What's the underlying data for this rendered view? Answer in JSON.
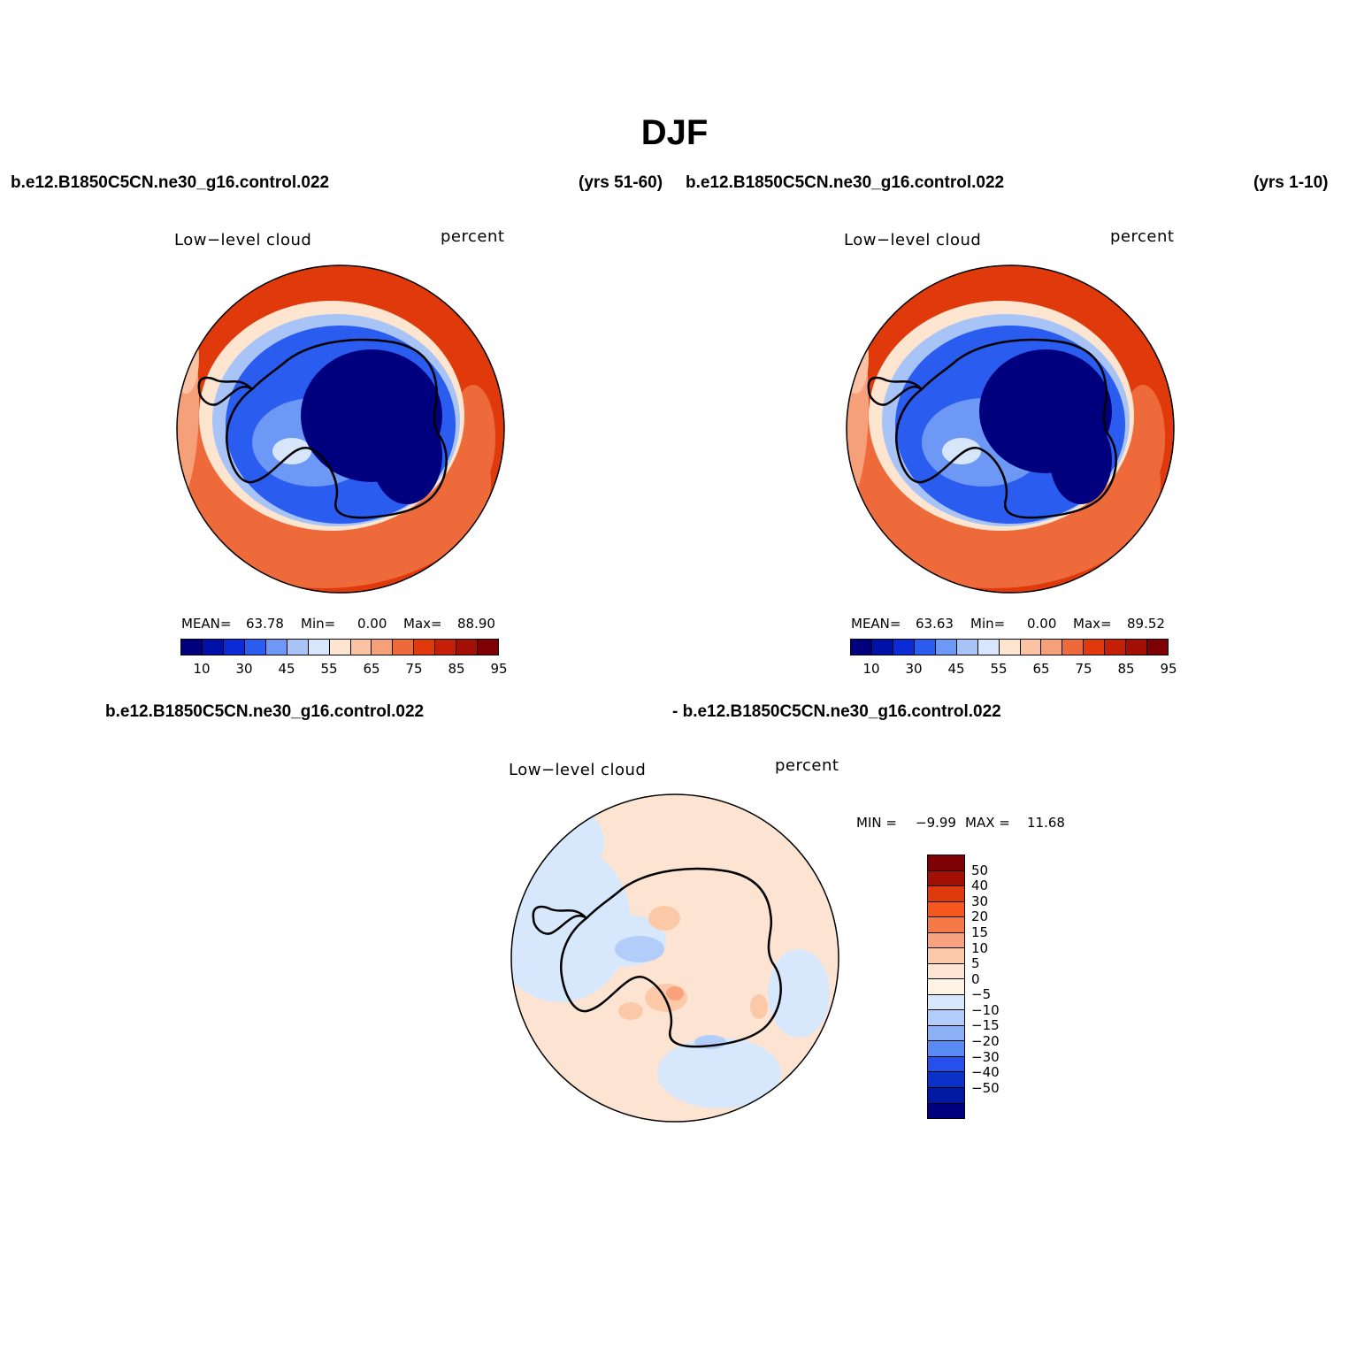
{
  "title": "DJF",
  "panels": [
    {
      "case_left": "b.e12.B1850C5CN.ne30_g16.control.022",
      "case_right": "(yrs 51-60)",
      "variable": "Low−level cloud",
      "units": "percent",
      "mean_label": "MEAN=",
      "mean": "63.78",
      "min_label": "Min=",
      "min": "0.00",
      "max_label": "Max=",
      "max": "88.90"
    },
    {
      "case_left": "b.e12.B1850C5CN.ne30_g16.control.022",
      "case_right": "(yrs 1-10)",
      "variable": "Low−level cloud",
      "units": "percent",
      "mean_label": "MEAN=",
      "mean": "63.63",
      "min_label": "Min=",
      "min": "0.00",
      "max_label": "Max=",
      "max": "89.52"
    }
  ],
  "diff_panel": {
    "case_left": "b.e12.B1850C5CN.ne30_g16.control.022",
    "case_right": "- b.e12.B1850C5CN.ne30_g16.control.022",
    "variable": "Low−level cloud",
    "units": "percent",
    "min_label": "MIN =",
    "min": "−9.99",
    "max_label": "MAX =",
    "max": "11.68"
  },
  "colorbar_abs": {
    "tick_labels": [
      "10",
      "30",
      "45",
      "55",
      "65",
      "75",
      "85",
      "95"
    ],
    "colors": [
      "#00007f",
      "#0011a8",
      "#0a2bd6",
      "#2a5cf0",
      "#6e98f5",
      "#a8c4f7",
      "#d7e6fb",
      "#fde5d0",
      "#fbc3a4",
      "#f6a079",
      "#ef6a3a",
      "#e03a0c",
      "#c51f07",
      "#a30f05",
      "#7e0004"
    ]
  },
  "colorbar_diff": {
    "tick_labels": [
      "50",
      "40",
      "30",
      "20",
      "15",
      "10",
      "5",
      "0",
      "−5",
      "−10",
      "−15",
      "−20",
      "−30",
      "−40",
      "−50"
    ],
    "colors": [
      "#7e0004",
      "#a30f05",
      "#e03a0c",
      "#f5581f",
      "#f57a45",
      "#f8a37e",
      "#fcc9a8",
      "#fde4d2",
      "#fff3e8",
      "#d7e8fd",
      "#b3cdfa",
      "#8cb0f6",
      "#5a8af3",
      "#2550ec",
      "#0a32c8",
      "#0019a3",
      "#00007f"
    ]
  }
}
